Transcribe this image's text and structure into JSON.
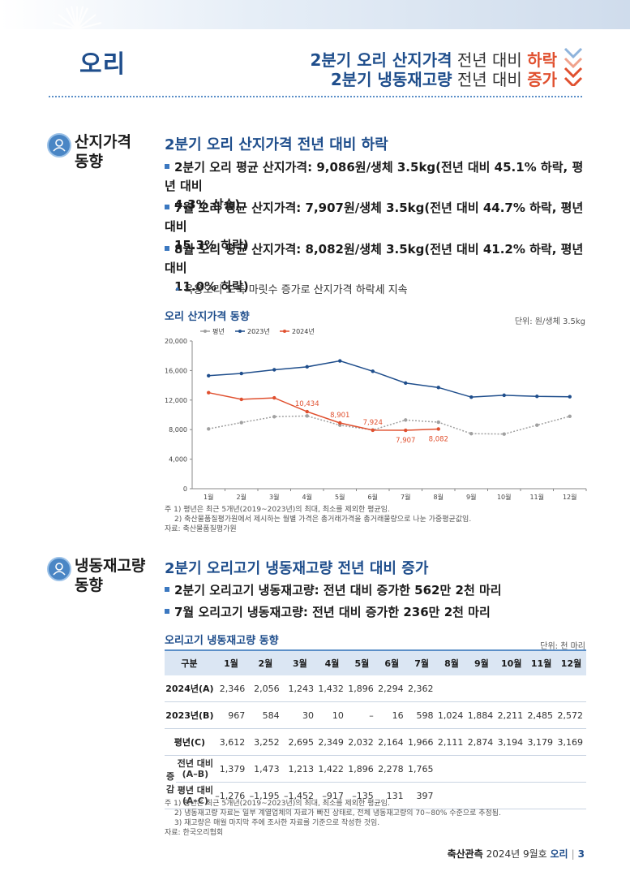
{
  "header": {
    "title": "오리",
    "headline1": {
      "a": "2분기 오리 산지가격",
      "b": " 전년 대비 ",
      "c": "하락"
    },
    "headline2": {
      "a": "2분기 냉동재고량",
      "b": " 전년 대비 ",
      "c": "증가"
    },
    "accent_color": "#1f4e8c",
    "down_color": "#e0502f"
  },
  "section1": {
    "label1": "산지가격",
    "label2": "동향",
    "heading": "2분기 오리 산지가격 전년 대비 하락",
    "bullets": [
      {
        "l1": "2분기 오리 평균 산지가격: 9,086원/생체 3.5kg(전년 대비 45.1% 하락, 평년 대비",
        "l2": "4.3% 상승)"
      },
      {
        "l1": "7월 오리 평균 산지가격: 7,907원/생체 3.5kg(전년 대비 44.7% 하락, 평년 대비",
        "l2": "15.3% 하락)"
      },
      {
        "l1": "8월 오리 평균 산지가격: 8,082원/생체 3.5kg(전년 대비 41.2% 하락, 평년 대비",
        "l2": "11.0% 하락)"
      }
    ],
    "sub_bullet": "육용오리 도축 마릿수 증가로 산지가격 하락세 지속",
    "chart_title": "오리 산지가격 동향",
    "chart_unit": "단위: 원/생체 3.5kg",
    "notes": [
      "주 1) 평년은 최근 5개년(2019~2023년)의 최대, 최소를 제외한 평균임.",
      "2) 축산물품질평가원에서 제시하는 월별 가격은 총거래가격을 총거래물량으로 나눈 가중평균값임.",
      "자료: 축산물품질평가원"
    ]
  },
  "chart_data": {
    "type": "line",
    "categories": [
      "1월",
      "2월",
      "3월",
      "4월",
      "5월",
      "6월",
      "7월",
      "8월",
      "9월",
      "10월",
      "11월",
      "12월"
    ],
    "series": [
      {
        "name": "평년",
        "color": "#a0a0a0",
        "values": [
          8100,
          8950,
          9750,
          9850,
          8600,
          7950,
          9300,
          9000,
          7450,
          7400,
          8600,
          9800
        ]
      },
      {
        "name": "2023년",
        "color": "#1f4e8c",
        "values": [
          15300,
          15600,
          16100,
          16500,
          17300,
          15900,
          14300,
          13700,
          12400,
          12650,
          12500,
          12450
        ]
      },
      {
        "name": "2024년",
        "color": "#e0502f",
        "values": [
          13000,
          12100,
          12300,
          10434,
          8901,
          7924,
          7907,
          8082,
          null,
          null,
          null,
          null
        ]
      }
    ],
    "data_labels": [
      {
        "series": "2024년",
        "index": 3,
        "text": "10,434"
      },
      {
        "series": "2024년",
        "index": 4,
        "text": "8,901"
      },
      {
        "series": "2024년",
        "index": 5,
        "text": "7,924"
      },
      {
        "series": "2024년",
        "index": 6,
        "text": "7,907"
      },
      {
        "series": "2024년",
        "index": 7,
        "text": "8,082"
      }
    ],
    "yticks": [
      "20,000",
      "16,000",
      "12,000",
      "8,000",
      "4,000",
      "0"
    ],
    "ylim": [
      0,
      20000
    ],
    "legend_position": "top-left",
    "grid": false
  },
  "section2": {
    "label1": "냉동재고량",
    "label2": "동향",
    "heading": "2분기 오리고기 냉동재고량 전년 대비 증가",
    "bullets": [
      "2분기 오리고기 냉동재고량: 전년 대비 증가한 562만 2천 마리",
      "7월 오리고기 냉동재고량: 전년 대비 증가한 236만 2천 마리"
    ],
    "table_title": "오리고기 냉동재고량 동향",
    "table_unit": "단위: 천 마리",
    "table": {
      "header": [
        "구분",
        "1월",
        "2월",
        "3월",
        "4월",
        "5월",
        "6월",
        "7월",
        "8월",
        "9월",
        "10월",
        "11월",
        "12월"
      ],
      "r2024": {
        "label": "2024년(A)",
        "values": [
          "2,346",
          "2,056",
          "1,243",
          "1,432",
          "1,896",
          "2,294",
          "2,362",
          "",
          "",
          "",
          "",
          ""
        ]
      },
      "r2023": {
        "label": "2023년(B)",
        "values": [
          "967",
          "584",
          "30",
          "10",
          "–",
          "16",
          "598",
          "1,024",
          "1,884",
          "2,211",
          "2,485",
          "2,572"
        ]
      },
      "ravg": {
        "label": "평년(C)",
        "values": [
          "3,612",
          "3,252",
          "2,695",
          "2,349",
          "2,032",
          "2,164",
          "1,966",
          "2,111",
          "2,874",
          "3,194",
          "3,179",
          "3,169"
        ]
      },
      "gam_label1": "증",
      "gam_label2": "감",
      "ryoy": {
        "label1": "전년 대비",
        "label2": "(A–B)",
        "values": [
          "1,379",
          "1,473",
          "1,213",
          "1,422",
          "1,896",
          "2,278",
          "1,765",
          "",
          "",
          "",
          "",
          ""
        ]
      },
      "rvavg": {
        "label1": "평년 대비",
        "label2": "(A–C)",
        "values": [
          "–1,276",
          "–1,195",
          "–1,452",
          "–917",
          "–135",
          "131",
          "397",
          "",
          "",
          "",
          "",
          ""
        ]
      }
    },
    "notes": [
      "주 1) 평년은 최근 5개년(2019~2023년)의 최대, 최소를 제외한 평균임.",
      "2) 냉동재고량 자료는 일부 계열업체의 자료가 빠진 상태로, 전체 냉동재고량의 70~80% 수준으로 추정됨.",
      "3) 재고량은 매월 마지막 주에 조사한 자료를 기준으로 작성한 것임.",
      "자료: 한국오리협회"
    ]
  },
  "footer": {
    "pub": "축산관측",
    "issue": " 2024년 9월호 ",
    "topic": "오리",
    "page": "3"
  }
}
